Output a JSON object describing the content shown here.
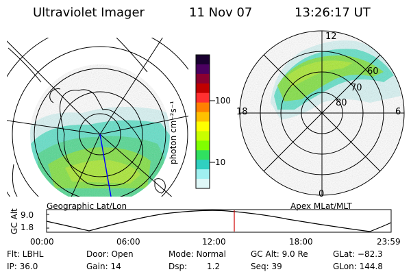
{
  "header": {
    "instrument": "Ultraviolet Imager",
    "date": "11 Nov 07",
    "time": "13:26:17 UT"
  },
  "colorbar": {
    "unit_label": "photon cm⁻²s⁻¹",
    "tick_labels": [
      "100",
      "10"
    ],
    "colors": [
      "#1a0030",
      "#4b0060",
      "#8b0030",
      "#c00000",
      "#ff3030",
      "#ff8000",
      "#ffc000",
      "#ffff00",
      "#c8ff00",
      "#80ff00",
      "#30e060",
      "#30d0c0",
      "#a0f0f0",
      "#e0f8f8"
    ]
  },
  "left_map": {
    "caption": "Geographic Lat/Lon"
  },
  "right_map": {
    "caption": "Apex MLat/MLT",
    "mlt_labels": {
      "top": "12",
      "left": "18",
      "right": "6",
      "bottom": "0"
    },
    "lat_labels": [
      "60",
      "70",
      "80"
    ]
  },
  "altitude_plot": {
    "ylabel": "GC Alt",
    "ytick_top": "9.0",
    "ytick_bottom": "1.8",
    "xtick_labels": [
      "00:00",
      "06:00",
      "12:00",
      "18:00",
      "23:59"
    ],
    "marker_color": "#d00000"
  },
  "info": {
    "flt": "Flt: LBHL",
    "ip": "IP: 36.0",
    "door": "Door: Open",
    "gain": "Gain: 14",
    "mode": "Mode: Normal",
    "dsp": "Dsp:",
    "dsp_value": "1.2",
    "gc_alt": "GC Alt: 9.0 Re",
    "seq": "Seq: 39",
    "glat": "GLat: −82.3",
    "glon": "GLon: 144.8"
  }
}
